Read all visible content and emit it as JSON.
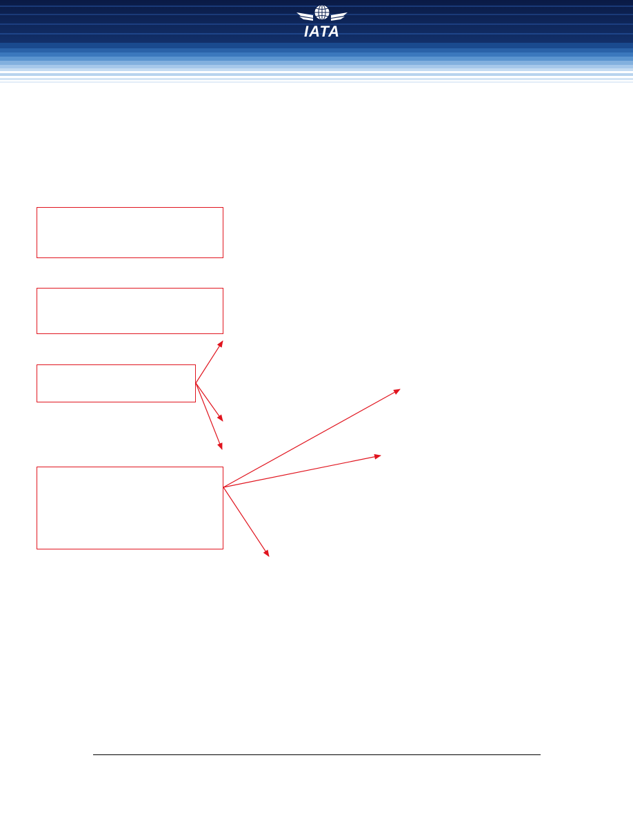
{
  "header": {
    "logo_text": "IATA",
    "colors": {
      "navy": "#0b1f4f",
      "mid_blue": "#2a6cb0",
      "light_blue": "#9cc3e6",
      "pale_blue": "#d8e7f5"
    },
    "logo_icon": "globe-wings-icon"
  },
  "diagram": {
    "box_color": "#e0141e",
    "boxes": [
      {
        "id": "box-1",
        "text": ""
      },
      {
        "id": "box-2",
        "text": ""
      },
      {
        "id": "box-3",
        "text": ""
      },
      {
        "id": "box-4",
        "text": ""
      }
    ]
  }
}
